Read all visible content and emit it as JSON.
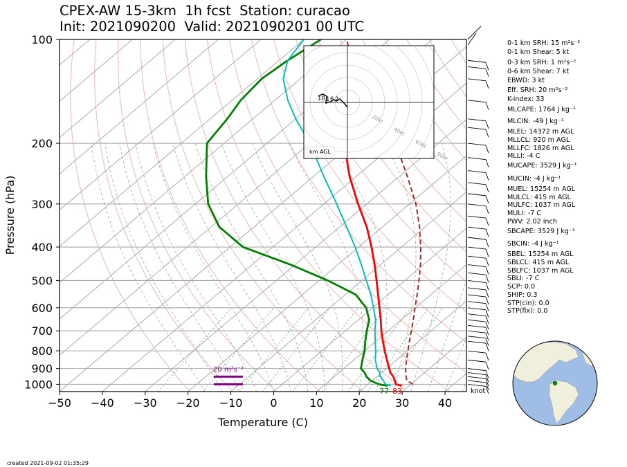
{
  "title": {
    "line1": "CPEX-AW 15-3km  1h fcst  Station: curacao",
    "line2": "Init: 2021090200  Valid: 2021090201 00 UTC"
  },
  "axes": {
    "xlabel": "Temperature (C)",
    "ylabel": "Pressure (hPa)",
    "x_ticks": [
      "−50",
      "−40",
      "−30",
      "−20",
      "−10",
      "0",
      "10",
      "20",
      "30",
      "40"
    ],
    "y_ticks": [
      "100",
      "200",
      "300",
      "400",
      "500",
      "600",
      "700",
      "800",
      "900",
      "1000"
    ]
  },
  "surface": {
    "dewpoint_f": "77",
    "temp_f": "83"
  },
  "srh_bar_label": "20 m²s⁻²",
  "hodograph": {
    "speed_rings": [
      "20kt",
      "40kt",
      "60kt",
      "80kt"
    ],
    "height_labels": [
      "10",
      "1",
      "6",
      "2"
    ],
    "legend": "km AGL"
  },
  "wind_unit": "knot",
  "indices": [
    "0-1 km SRH: 15 m²s⁻²",
    "0-1 km Shear: 5 kt",
    "0-3 km SRH: 1 m²s⁻²",
    "0-6 km Shear: 7 kt",
    "EBWD: 3 kt",
    "Eff. SRH: 20 m²s⁻²",
    "K-index: 33",
    "MLCAPE: 1764 J kg⁻¹",
    "MLCIN: -49 J kg⁻¹",
    "MLEL: 14372 m AGL",
    "MLLCL: 920 m AGL",
    "MLLFC: 1826 m AGL",
    "MLLI: -4 C",
    "MUCAPE: 3529 J kg⁻¹",
    "MUCIN: -4 J kg⁻¹",
    "MUEL: 15254 m AGL",
    "MULCL: 415 m AGL",
    "MULFC: 1037 m AGL",
    "MULI: -7 C",
    "PWV: 2.02 inch",
    "SBCAPE: 3529 J kg⁻¹",
    "SBCIN: -4 J kg⁻¹",
    "SBEL: 15254 m AGL",
    "SBLCL: 415 m AGL",
    "SBLFC: 1037 m AGL",
    "SBLI: -7 C",
    "SCP: 0.0",
    "SHIP: 0.3",
    "STP(cin): 0.0",
    "STP(fix): 0.0"
  ],
  "created": "created 2021-09-02 01:35:29",
  "colors": {
    "temperature": "#ff0000",
    "dewpoint": "#008000",
    "wetbulb": "#00bfbf",
    "parcel": "#a52a2a",
    "srh_bar": "#800080",
    "isotherm": "#b0b0b0",
    "dry_adiabat": "#f4b4b4",
    "mixing_ratio": "#66bb66",
    "globe_ocean": "#a0bde6",
    "globe_land": "#f0efdc"
  },
  "chart_data": {
    "type": "line",
    "chart_kind": "skew-T log-p sounding",
    "xlim": [
      -50,
      45
    ],
    "ylim_hpa": [
      1050,
      100
    ],
    "log_pressure": true,
    "series": [
      {
        "key": "temperature",
        "pressure": [
          1010,
          1000,
          975,
          950,
          925,
          900,
          850,
          800,
          750,
          700,
          650,
          600,
          550,
          500,
          450,
          400,
          350,
          300,
          250,
          200
        ],
        "values": [
          28.3,
          26.5,
          25.2,
          23.8,
          22.0,
          20.6,
          17.7,
          14.7,
          11.6,
          8.4,
          5.2,
          1.6,
          -2.3,
          -6.6,
          -11.4,
          -17.0,
          -23.6,
          -32.0,
          -41.5,
          -52.0
        ]
      },
      {
        "key": "dewpoint",
        "pressure": [
          1010,
          1000,
          975,
          950,
          925,
          900,
          850,
          800,
          750,
          700,
          650,
          600,
          550,
          500,
          450,
          400,
          350,
          300,
          250,
          200,
          170,
          150,
          130,
          115,
          100
        ],
        "values": [
          25.0,
          22.5,
          19.5,
          17.5,
          16.0,
          14.0,
          12.0,
          10.0,
          7.5,
          5.0,
          2.5,
          -1.5,
          -7.5,
          -18.0,
          -31.0,
          -47.0,
          -58.0,
          -67.0,
          -75.0,
          -84.0,
          -86.0,
          -88.0,
          -89.0,
          -88.0,
          -86.0
        ]
      },
      {
        "key": "wetbulb",
        "pressure": [
          1010,
          1000,
          975,
          950,
          925,
          900,
          850,
          800,
          750,
          700,
          650,
          600,
          550,
          500,
          450,
          400,
          350,
          300,
          250,
          200,
          170,
          150,
          130,
          115,
          100
        ],
        "values": [
          25.8,
          24.1,
          22.5,
          20.8,
          19.5,
          17.8,
          15.0,
          12.6,
          9.8,
          6.9,
          4.0,
          0.2,
          -4.0,
          -9.0,
          -14.5,
          -20.8,
          -28.3,
          -37.0,
          -47.5,
          -60.0,
          -70.0,
          -77.0,
          -84.0,
          -88.0,
          -90.0
        ]
      },
      {
        "key": "parcel",
        "pressure": [
          1000,
          975,
          950,
          925,
          900,
          850,
          800,
          750,
          700,
          650,
          600,
          550,
          500,
          450,
          400,
          350,
          300,
          250,
          200,
          170,
          150,
          130,
          115,
          100
        ],
        "values": [
          30.5,
          28.0,
          26.8,
          25.6,
          24.4,
          22.3,
          20.1,
          17.8,
          15.4,
          12.8,
          9.9,
          6.8,
          3.3,
          -0.7,
          -5.5,
          -11.3,
          -18.5,
          -28.0,
          -40.0,
          -50.0,
          -57.5,
          -66.0,
          -73.0,
          -80.0
        ]
      }
    ],
    "srh_bars": [
      {
        "pressure_hpa": 950,
        "x_start": -14,
        "x_end": -7.2,
        "label": "20 m²s⁻²"
      },
      {
        "pressure_hpa": 1000,
        "x_start": -14,
        "x_end": -7.2
      }
    ],
    "wind_barbs_pressure": [
      115,
      120,
      130,
      150,
      170,
      180,
      200,
      220,
      240,
      260,
      280,
      300,
      325,
      350,
      375,
      400,
      425,
      450,
      475,
      500,
      525,
      550,
      575,
      600,
      625,
      650,
      675,
      700,
      725,
      750,
      800,
      850,
      900,
      925,
      950,
      975,
      1000
    ]
  }
}
